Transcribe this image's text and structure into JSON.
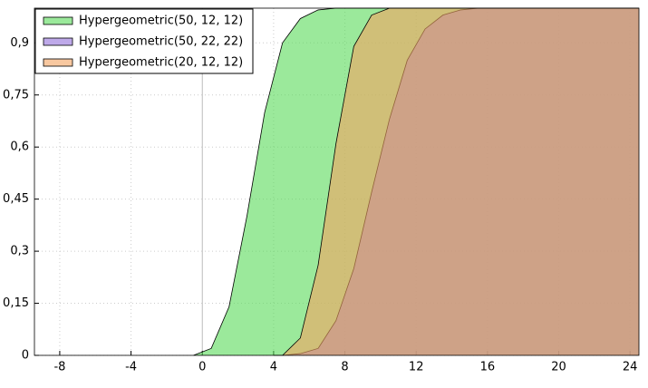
{
  "chart_data": {
    "type": "area",
    "series": [
      {
        "name": "Hypergeometric(50, 12, 12)",
        "color": "#58da58",
        "x": [
          -0.5,
          0.5,
          1.5,
          2.5,
          3.5,
          4.5,
          5.5,
          6.5,
          7.5,
          24.5
        ],
        "values": [
          0,
          0.02,
          0.14,
          0.4,
          0.7,
          0.9,
          0.97,
          0.995,
          1,
          1
        ]
      },
      {
        "name": "Hypergeometric(50, 22, 22)",
        "color": "#9370db",
        "x": [
          4.5,
          5.5,
          6.5,
          7.5,
          8.5,
          9.5,
          10.5,
          11.5,
          12.5,
          13.5,
          14.5,
          15.5,
          24.5
        ],
        "values": [
          0,
          0.005,
          0.02,
          0.1,
          0.25,
          0.47,
          0.68,
          0.85,
          0.94,
          0.98,
          0.995,
          1,
          1
        ]
      },
      {
        "name": "Hypergeometric(20, 12, 12)",
        "color": "#f4a460",
        "x": [
          4,
          4.5,
          5.5,
          6.5,
          7.5,
          8.5,
          9.5,
          10.5,
          24.5
        ],
        "values": [
          0,
          0,
          0.05,
          0.26,
          0.61,
          0.89,
          0.98,
          1,
          1
        ]
      }
    ],
    "xlim": [
      -9.42,
      24.5
    ],
    "ylim": [
      0,
      1
    ],
    "xticks": [
      -8,
      -4,
      0,
      4,
      8,
      12,
      16,
      20,
      24
    ],
    "yticks": [
      0,
      {
        "value": 0.15,
        "label": "0,15"
      },
      {
        "value": 0.3,
        "label": "0,3"
      },
      {
        "value": 0.45,
        "label": "0,45"
      },
      {
        "value": 0.6,
        "label": "0,6"
      },
      {
        "value": 0.75,
        "label": "0,75"
      },
      {
        "value": 0.9,
        "label": "0,9"
      }
    ],
    "grid": true,
    "legend": "top-left"
  }
}
